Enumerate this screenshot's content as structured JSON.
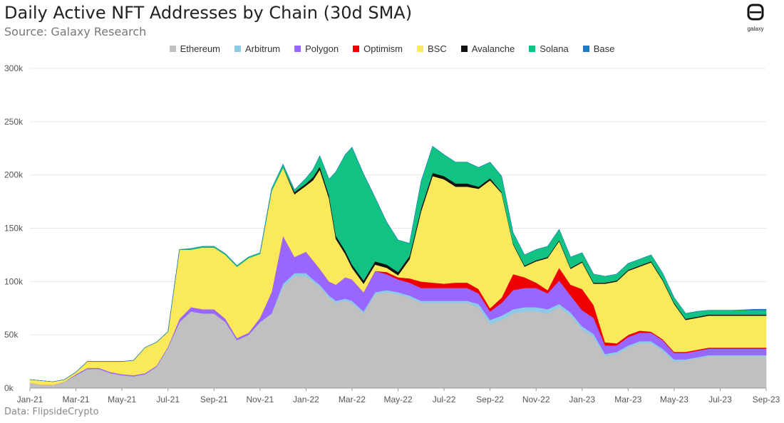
{
  "header": {
    "title": "Daily Active NFT Addresses by Chain (30d SMA)",
    "subtitle": "Source: Galaxy Research",
    "logo_text": "galaxy",
    "logo_icon": "galaxy-logo-icon"
  },
  "footer": {
    "note": "Data: FlipsideCrypto"
  },
  "chart_data": {
    "type": "area",
    "stacked": true,
    "title": "Daily Active NFT Addresses by Chain (30d SMA)",
    "xlabel": "",
    "ylabel": "",
    "x_unit": "months since Jan-21",
    "xlim": [
      0,
      32
    ],
    "ylim": [
      0,
      300000
    ],
    "yticks": [
      0,
      50000,
      100000,
      150000,
      200000,
      250000,
      300000
    ],
    "ytick_labels": [
      "0k",
      "50k",
      "100k",
      "150k",
      "200k",
      "250k",
      "300k"
    ],
    "xticks": [
      0,
      2,
      4,
      6,
      8,
      10,
      12,
      14,
      16,
      18,
      20,
      22,
      24,
      26,
      28,
      30,
      32
    ],
    "xtick_labels": [
      "Jan-21",
      "Mar-21",
      "May-21",
      "Jul-21",
      "Sep-21",
      "Nov-21",
      "Jan-22",
      "Mar-22",
      "May-22",
      "Jul-22",
      "Sep-22",
      "Nov-22",
      "Jan-23",
      "Mar-23",
      "May-23",
      "Jul-23",
      "Sep-23"
    ],
    "grid": true,
    "legend_position": "top-center",
    "x": [
      0,
      0.5,
      1,
      1.5,
      2,
      2.5,
      3,
      3.5,
      4,
      4.5,
      5,
      5.5,
      6,
      6.5,
      7,
      7.5,
      8,
      8.5,
      9,
      9.5,
      10,
      10.5,
      11,
      11.5,
      12,
      12.3,
      12.6,
      13,
      13.3,
      13.7,
      14,
      14.5,
      15,
      15.5,
      16,
      16.5,
      17,
      17.5,
      18,
      18.5,
      19,
      19.5,
      20,
      20.5,
      21,
      21.5,
      22,
      22.5,
      23,
      23.5,
      24,
      24.5,
      25,
      25.5,
      26,
      26.5,
      27,
      27.5,
      28,
      28.5,
      29,
      29.5,
      30,
      30.5,
      31,
      31.5,
      32
    ],
    "series": [
      {
        "name": "Ethereum",
        "color": "#c0c0c0",
        "values": [
          5000,
          3000,
          3000,
          6000,
          12000,
          18000,
          18000,
          14000,
          12000,
          11000,
          13000,
          20000,
          38000,
          62000,
          72000,
          70000,
          70000,
          62000,
          45000,
          50000,
          62000,
          70000,
          95000,
          105000,
          105000,
          100000,
          95000,
          85000,
          80000,
          82000,
          80000,
          70000,
          88000,
          90000,
          88000,
          85000,
          80000,
          80000,
          80000,
          80000,
          80000,
          76000,
          60000,
          64000,
          70000,
          72000,
          72000,
          70000,
          76000,
          68000,
          55000,
          48000,
          30000,
          32000,
          38000,
          42000,
          42000,
          35000,
          25000,
          26000,
          28000,
          30000,
          30000,
          30000,
          30000,
          30000,
          30000
        ]
      },
      {
        "name": "Arbitrum",
        "color": "#8ecae6",
        "values": [
          0,
          0,
          0,
          0,
          0,
          0,
          0,
          0,
          0,
          0,
          0,
          0,
          0,
          0,
          0,
          0,
          0,
          0,
          0,
          0,
          0,
          0,
          3000,
          3000,
          3000,
          2000,
          2000,
          2000,
          2000,
          2000,
          2000,
          2000,
          2000,
          2000,
          2000,
          2000,
          2000,
          2000,
          2000,
          2000,
          2000,
          3000,
          4000,
          4000,
          4000,
          4000,
          4000,
          4000,
          3000,
          3000,
          3000,
          3000,
          2000,
          2000,
          2000,
          2000,
          2000,
          2000,
          2000,
          1000,
          1000,
          1000,
          1000,
          1000,
          1000,
          1000,
          1000
        ]
      },
      {
        "name": "Polygon",
        "color": "#9966ff",
        "values": [
          0,
          0,
          0,
          0,
          1000,
          1000,
          1000,
          1000,
          1000,
          1000,
          1000,
          1000,
          1000,
          3000,
          4000,
          4000,
          4000,
          3000,
          2000,
          2000,
          4000,
          20000,
          45000,
          15000,
          20000,
          18000,
          15000,
          13000,
          15000,
          20000,
          20000,
          18000,
          20000,
          15000,
          12000,
          12000,
          12000,
          12000,
          12000,
          12000,
          12000,
          10000,
          8000,
          12000,
          18000,
          18000,
          18000,
          15000,
          22000,
          16000,
          15000,
          15000,
          8000,
          6000,
          8000,
          8000,
          8000,
          8000,
          6000,
          6000,
          6000,
          6000,
          6000,
          6000,
          6000,
          6000,
          6000
        ]
      },
      {
        "name": "Optimism",
        "color": "#ee0000",
        "values": [
          0,
          0,
          0,
          0,
          0,
          0,
          0,
          0,
          0,
          0,
          0,
          0,
          0,
          0,
          0,
          0,
          0,
          0,
          0,
          0,
          0,
          0,
          0,
          0,
          0,
          0,
          0,
          0,
          0,
          0,
          0,
          0,
          0,
          2000,
          2000,
          4000,
          6000,
          5000,
          4000,
          5000,
          5000,
          4000,
          3000,
          5000,
          15000,
          10000,
          5000,
          3000,
          12000,
          10000,
          20000,
          12000,
          3000,
          2000,
          2000,
          2000,
          1000,
          1000,
          1000,
          1000,
          1000,
          1000,
          1000,
          1000,
          1000,
          1000,
          1000
        ]
      },
      {
        "name": "BSC",
        "color": "#fbe95c",
        "values": [
          3000,
          4000,
          3000,
          2000,
          2000,
          6000,
          6000,
          10000,
          12000,
          14000,
          24000,
          22000,
          14000,
          65000,
          54000,
          58000,
          58000,
          60000,
          67000,
          70000,
          60000,
          95000,
          64000,
          59000,
          62000,
          75000,
          93000,
          78000,
          43000,
          22000,
          11000,
          8000,
          6000,
          4000,
          2000,
          18000,
          66000,
          100000,
          98000,
          90000,
          90000,
          94000,
          120000,
          98000,
          28000,
          10000,
          20000,
          30000,
          25000,
          15000,
          25000,
          20000,
          55000,
          58000,
          60000,
          60000,
          65000,
          55000,
          45000,
          30000,
          30000,
          30000,
          30000,
          30000,
          30000,
          30000,
          30000
        ]
      },
      {
        "name": "Avalanche",
        "color": "#111111",
        "values": [
          0,
          0,
          0,
          0,
          0,
          0,
          0,
          0,
          0,
          0,
          0,
          0,
          0,
          0,
          0,
          0,
          0,
          0,
          0,
          0,
          0,
          0,
          0,
          2000,
          2000,
          3000,
          3000,
          3000,
          3000,
          3000,
          3000,
          3000,
          3000,
          3000,
          3000,
          3000,
          3000,
          3000,
          3000,
          3000,
          3000,
          2000,
          2000,
          1000,
          1000,
          1000,
          1000,
          1000,
          1000,
          1000,
          1000,
          1000,
          1000,
          1000,
          1000,
          1000,
          1000,
          1000,
          1000,
          1000,
          1000,
          1000,
          1000,
          1000,
          1000,
          1000,
          1000
        ]
      },
      {
        "name": "Solana",
        "color": "#12c283",
        "values": [
          0,
          0,
          0,
          0,
          0,
          0,
          0,
          0,
          0,
          0,
          0,
          0,
          0,
          0,
          1000,
          1000,
          1000,
          1000,
          1000,
          1000,
          1000,
          2000,
          3000,
          2000,
          5000,
          7000,
          10000,
          15000,
          60000,
          90000,
          110000,
          100000,
          60000,
          40000,
          30000,
          12000,
          25000,
          25000,
          20000,
          20000,
          20000,
          18000,
          15000,
          15000,
          10000,
          10000,
          10000,
          10000,
          10000,
          10000,
          8000,
          8000,
          6000,
          6000,
          6000,
          6000,
          6000,
          6000,
          5000,
          5000,
          5000,
          4000,
          4000,
          4000,
          4000,
          4000,
          4000
        ]
      },
      {
        "name": "Base",
        "color": "#1f78c8",
        "values": [
          0,
          0,
          0,
          0,
          0,
          0,
          0,
          0,
          0,
          0,
          0,
          0,
          0,
          0,
          0,
          0,
          0,
          0,
          0,
          0,
          0,
          0,
          0,
          0,
          0,
          0,
          0,
          0,
          0,
          0,
          0,
          0,
          0,
          0,
          0,
          0,
          0,
          0,
          0,
          0,
          0,
          0,
          0,
          0,
          0,
          0,
          0,
          0,
          0,
          0,
          0,
          0,
          0,
          0,
          0,
          0,
          0,
          0,
          0,
          0,
          0,
          0,
          0,
          0,
          500,
          1000,
          1000
        ]
      }
    ]
  }
}
